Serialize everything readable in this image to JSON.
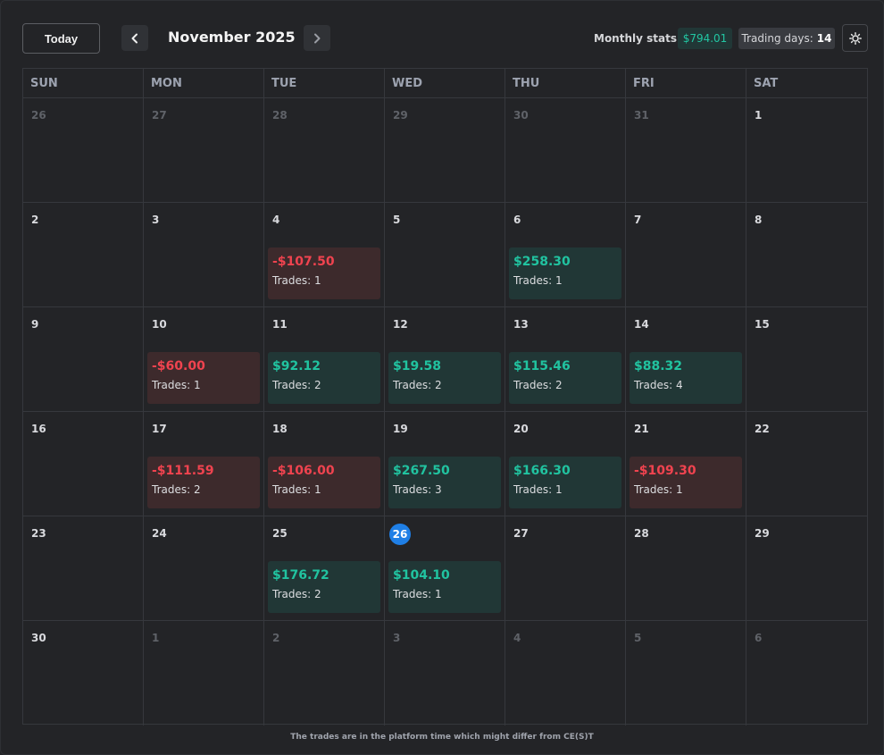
{
  "header": {
    "today_label": "Today",
    "month_title": "November 2025",
    "stats_label": "Monthly stats:",
    "stats_value": "$794.01",
    "trading_days_label": "Trading days:",
    "trading_days_value": "14",
    "prev_icon": "chevron-left-icon",
    "next_icon": "chevron-right-icon",
    "settings_icon": "sun-gear-icon"
  },
  "colors": {
    "positive": "#21c3a0",
    "negative": "#f0434f",
    "today_badge": "#1f7fe6"
  },
  "weekdays": [
    "SUN",
    "MON",
    "TUE",
    "WED",
    "THU",
    "FRI",
    "SAT"
  ],
  "days": [
    {
      "n": "26",
      "muted": true
    },
    {
      "n": "27",
      "muted": true
    },
    {
      "n": "28",
      "muted": true
    },
    {
      "n": "29",
      "muted": true
    },
    {
      "n": "30",
      "muted": true
    },
    {
      "n": "31",
      "muted": true
    },
    {
      "n": "1"
    },
    {
      "n": "2"
    },
    {
      "n": "3"
    },
    {
      "n": "4",
      "pnl": "-$107.50",
      "trades": "Trades: 1",
      "neg": true
    },
    {
      "n": "5"
    },
    {
      "n": "6",
      "pnl": "$258.30",
      "trades": "Trades: 1"
    },
    {
      "n": "7"
    },
    {
      "n": "8"
    },
    {
      "n": "9"
    },
    {
      "n": "10",
      "pnl": "-$60.00",
      "trades": "Trades: 1",
      "neg": true
    },
    {
      "n": "11",
      "pnl": "$92.12",
      "trades": "Trades: 2"
    },
    {
      "n": "12",
      "pnl": "$19.58",
      "trades": "Trades: 2"
    },
    {
      "n": "13",
      "pnl": "$115.46",
      "trades": "Trades: 2"
    },
    {
      "n": "14",
      "pnl": "$88.32",
      "trades": "Trades: 4"
    },
    {
      "n": "15"
    },
    {
      "n": "16"
    },
    {
      "n": "17",
      "pnl": "-$111.59",
      "trades": "Trades: 2",
      "neg": true
    },
    {
      "n": "18",
      "pnl": "-$106.00",
      "trades": "Trades: 1",
      "neg": true
    },
    {
      "n": "19",
      "pnl": "$267.50",
      "trades": "Trades: 3"
    },
    {
      "n": "20",
      "pnl": "$166.30",
      "trades": "Trades: 1"
    },
    {
      "n": "21",
      "pnl": "-$109.30",
      "trades": "Trades: 1",
      "neg": true
    },
    {
      "n": "22"
    },
    {
      "n": "23"
    },
    {
      "n": "24"
    },
    {
      "n": "25",
      "pnl": "$176.72",
      "trades": "Trades: 2"
    },
    {
      "n": "26",
      "today": true,
      "pnl": "$104.10",
      "trades": "Trades: 1"
    },
    {
      "n": "27"
    },
    {
      "n": "28"
    },
    {
      "n": "29"
    },
    {
      "n": "30"
    },
    {
      "n": "1",
      "muted": true
    },
    {
      "n": "2",
      "muted": true
    },
    {
      "n": "3",
      "muted": true
    },
    {
      "n": "4",
      "muted": true
    },
    {
      "n": "5",
      "muted": true
    },
    {
      "n": "6",
      "muted": true
    }
  ],
  "footer": {
    "note": "The trades are in the platform time which might differ from CE(S)T"
  }
}
